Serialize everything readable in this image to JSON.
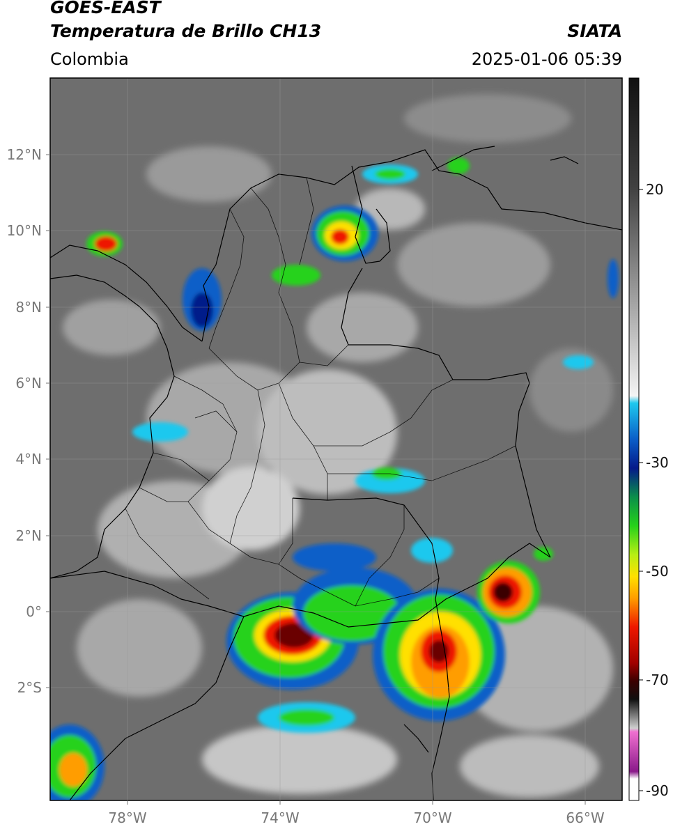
{
  "header": {
    "satellite": "GOES-EAST",
    "product": "Temperatura de Brillo CH13",
    "agency": "SIATA",
    "region": "Colombia",
    "datetime": "2025-01-06 05:39"
  },
  "map": {
    "lat_labels": [
      "12°N",
      "10°N",
      "8°N",
      "6°N",
      "4°N",
      "2°N",
      "0°",
      "2°S"
    ],
    "lon_labels": [
      "78°W",
      "74°W",
      "70°W",
      "66°W"
    ],
    "background_color": "#6e6e6e",
    "gridline_color": "#9a9a9a",
    "border_color": "#000000"
  },
  "colorbar": {
    "unit_hint": "°C",
    "tick_labels": [
      "20",
      "-30",
      "-50",
      "-70",
      "-90"
    ],
    "stops": [
      {
        "t": 0.0,
        "color": "#111111"
      },
      {
        "t": 0.15,
        "color": "#404040"
      },
      {
        "t": 0.27,
        "color": "#8a8a8a"
      },
      {
        "t": 0.44,
        "color": "#f4f4f4"
      },
      {
        "t": 0.45,
        "color": "#1ec8ee"
      },
      {
        "t": 0.5,
        "color": "#0a5ec8"
      },
      {
        "t": 0.54,
        "color": "#051a8a"
      },
      {
        "t": 0.58,
        "color": "#0b8f4a"
      },
      {
        "t": 0.62,
        "color": "#26d21a"
      },
      {
        "t": 0.66,
        "color": "#b8ee14"
      },
      {
        "t": 0.69,
        "color": "#ffe000"
      },
      {
        "t": 0.72,
        "color": "#ff9d00"
      },
      {
        "t": 0.76,
        "color": "#ee1800"
      },
      {
        "t": 0.81,
        "color": "#a00000"
      },
      {
        "t": 0.835,
        "color": "#3a0000"
      },
      {
        "t": 0.86,
        "color": "#101010"
      },
      {
        "t": 0.9,
        "color": "#cfcfcf"
      },
      {
        "t": 0.905,
        "color": "#f070d0"
      },
      {
        "t": 0.96,
        "color": "#8a1a8a"
      },
      {
        "t": 0.97,
        "color": "#ffffff"
      },
      {
        "t": 1.0,
        "color": "#ffffff"
      }
    ]
  }
}
